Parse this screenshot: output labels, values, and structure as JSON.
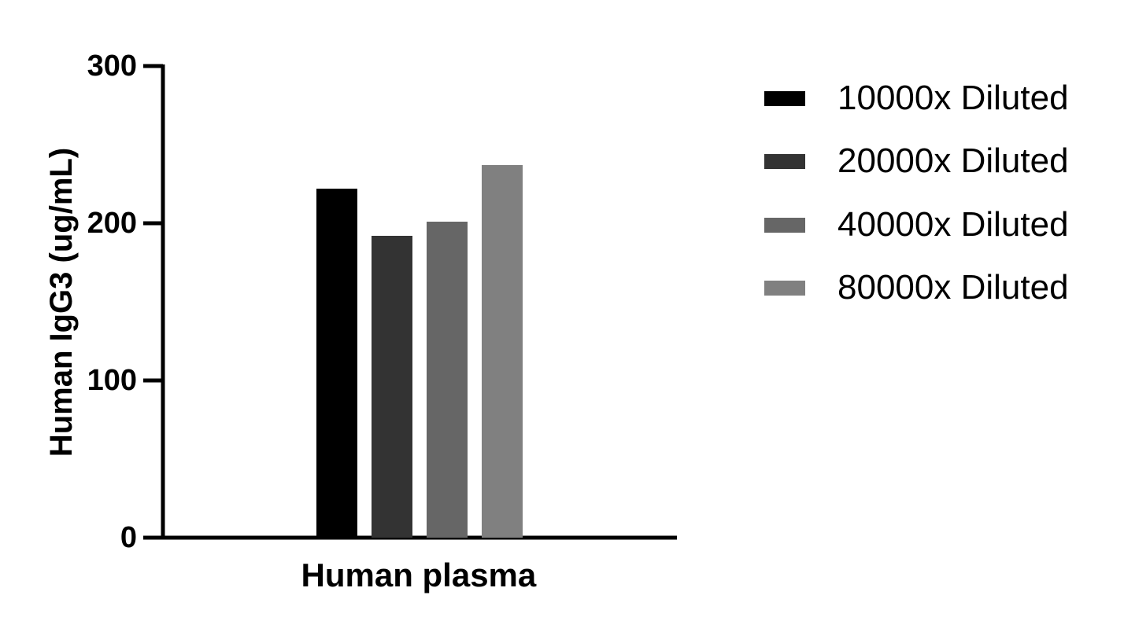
{
  "chart_data": {
    "type": "bar",
    "title": "",
    "xlabel": "Human plasma",
    "ylabel": "Human IgG3 (ug/mL)",
    "ylim": [
      0,
      300
    ],
    "yticks": [
      0,
      100,
      200,
      300
    ],
    "ytick_labels": [
      "0",
      "100",
      "200",
      "300"
    ],
    "grid": false,
    "legend_position": "right",
    "categories": [
      "Human plasma"
    ],
    "series": [
      {
        "name": "10000x Diluted",
        "color": "#000000",
        "values": [
          222
        ]
      },
      {
        "name": "20000x Diluted",
        "color": "#333333",
        "values": [
          192
        ]
      },
      {
        "name": "40000x Diluted",
        "color": "#666666",
        "values": [
          201
        ]
      },
      {
        "name": "80000x Diluted",
        "color": "#808080",
        "values": [
          237
        ]
      }
    ]
  }
}
